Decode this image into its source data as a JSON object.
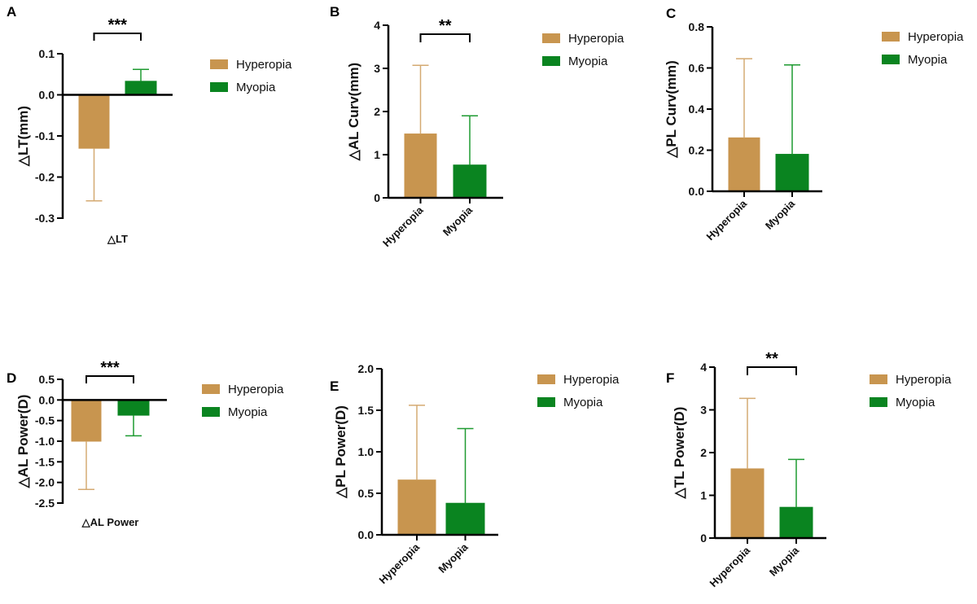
{
  "colors": {
    "Hyperopia": "#C8954F",
    "Hyperopia_err": "#D4AA72",
    "Myopia": "#0A8420",
    "Myopia_err": "#1E9A30",
    "axis": "#000000"
  },
  "chart_data": [
    {
      "panel": "A",
      "type": "bar",
      "ylabel": "△LT(mm)",
      "xlabel": "△LT",
      "ylim": [
        -0.3,
        0.1
      ],
      "yticks": [
        "0.1",
        "0.0",
        "-0.1",
        "-0.2",
        "-0.3"
      ],
      "ytick_values": [
        0.1,
        0,
        -0.1,
        -0.2,
        -0.3
      ],
      "categories": [],
      "series": [
        {
          "name": "Hyperopia",
          "value": -0.13,
          "error": 0.128
        },
        {
          "name": "Myopia",
          "value": 0.033,
          "error": 0.029
        }
      ],
      "significance": "***",
      "legend": "right"
    },
    {
      "panel": "B",
      "type": "bar",
      "ylabel": "△AL Curv(mm)",
      "xlabel": "",
      "ylim": [
        0,
        4
      ],
      "yticks": [
        "4",
        "3",
        "2",
        "1",
        "0"
      ],
      "ytick_values": [
        4,
        3,
        2,
        1,
        0
      ],
      "categories": [
        "Hyperopia",
        "Myopia"
      ],
      "series": [
        {
          "name": "Hyperopia",
          "value": 1.48,
          "error": 1.59
        },
        {
          "name": "Myopia",
          "value": 0.76,
          "error": 1.14
        }
      ],
      "significance": "**",
      "legend": "right"
    },
    {
      "panel": "C",
      "type": "bar",
      "ylabel": "△PL Curv(mm)",
      "xlabel": "",
      "ylim": [
        0,
        0.8
      ],
      "yticks": [
        "0.8",
        "0.6",
        "0.4",
        "0.2",
        "0.0"
      ],
      "ytick_values": [
        0.8,
        0.6,
        0.4,
        0.2,
        0
      ],
      "categories": [
        "Hyperopia",
        "Myopia"
      ],
      "series": [
        {
          "name": "Hyperopia",
          "value": 0.26,
          "error": 0.385
        },
        {
          "name": "Myopia",
          "value": 0.18,
          "error": 0.435
        }
      ],
      "significance": "",
      "legend": "right"
    },
    {
      "panel": "D",
      "type": "bar",
      "ylabel": "△AL Power(D)",
      "xlabel": "△AL Power",
      "ylim": [
        -2.5,
        0.5
      ],
      "yticks": [
        "0.5",
        "0.0",
        "-0.5",
        "-1.0",
        "-1.5",
        "-2.0",
        "-2.5"
      ],
      "ytick_values": [
        0.5,
        0,
        -0.5,
        -1,
        -1.5,
        -2,
        -2.5
      ],
      "categories": [],
      "series": [
        {
          "name": "Hyperopia",
          "value": -1.0,
          "error": 1.17
        },
        {
          "name": "Myopia",
          "value": -0.37,
          "error": 0.5
        }
      ],
      "significance": "***",
      "legend": "right"
    },
    {
      "panel": "E",
      "type": "bar",
      "ylabel": "△PL Power(D)",
      "xlabel": "",
      "ylim": [
        0,
        2.0
      ],
      "yticks": [
        "2.0",
        "1.5",
        "1.0",
        "0.5",
        "0.0"
      ],
      "ytick_values": [
        2,
        1.5,
        1,
        0.5,
        0
      ],
      "categories": [
        "Hyperopia",
        "Myopia"
      ],
      "series": [
        {
          "name": "Hyperopia",
          "value": 0.66,
          "error": 0.9
        },
        {
          "name": "Myopia",
          "value": 0.38,
          "error": 0.9
        }
      ],
      "significance": "",
      "legend": "right"
    },
    {
      "panel": "F",
      "type": "bar",
      "ylabel": "△TL Power(D)",
      "xlabel": "",
      "ylim": [
        0,
        4
      ],
      "yticks": [
        "4",
        "3",
        "2",
        "1",
        "0"
      ],
      "ytick_values": [
        4,
        3,
        2,
        1,
        0
      ],
      "categories": [
        "Hyperopia",
        "Myopia"
      ],
      "series": [
        {
          "name": "Hyperopia",
          "value": 1.62,
          "error": 1.65
        },
        {
          "name": "Myopia",
          "value": 0.72,
          "error": 1.12
        }
      ],
      "significance": "**",
      "legend": "right"
    }
  ]
}
